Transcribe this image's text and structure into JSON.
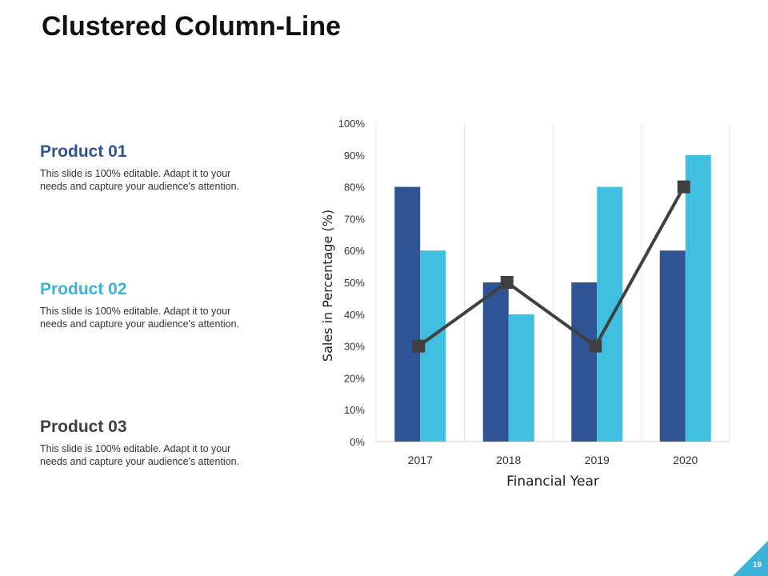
{
  "slide": {
    "title": "Clustered Column-Line",
    "page_number": "19"
  },
  "products": [
    {
      "name": "Product 01",
      "description": "This slide is 100% editable. Adapt it to your\nneeds and capture your audience's attention.",
      "color": "#2f5496"
    },
    {
      "name": "Product 02",
      "description": "This slide is 100% editable. Adapt it to your\nneeds and capture your audience's attention.",
      "color": "#3bb3d9"
    },
    {
      "name": "Product 03",
      "description": "This slide is 100% editable. Adapt it to your\nneeds and capture your audience's attention.",
      "color": "#404040"
    }
  ],
  "colors": {
    "series1": "#2f5496",
    "series2": "#41bfe0",
    "line": "#404040",
    "accent": "#3bb3d9"
  },
  "chart_data": {
    "type": "bar",
    "combo": "clustered column with line",
    "categories": [
      "2017",
      "2018",
      "2019",
      "2020"
    ],
    "series": [
      {
        "type": "bar",
        "values": [
          80,
          50,
          50,
          60
        ]
      },
      {
        "type": "bar",
        "values": [
          60,
          40,
          80,
          90
        ]
      },
      {
        "type": "line",
        "values": [
          30,
          50,
          30,
          80
        ]
      }
    ],
    "xlabel": "Financial Year",
    "ylabel": "Sales in Percentage (%)",
    "ylim": [
      0,
      100
    ],
    "yticks": [
      "0%",
      "10%",
      "20%",
      "30%",
      "40%",
      "50%",
      "60%",
      "70%",
      "80%",
      "90%",
      "100%"
    ],
    "grid": "vertical category lines",
    "legend": "none"
  }
}
